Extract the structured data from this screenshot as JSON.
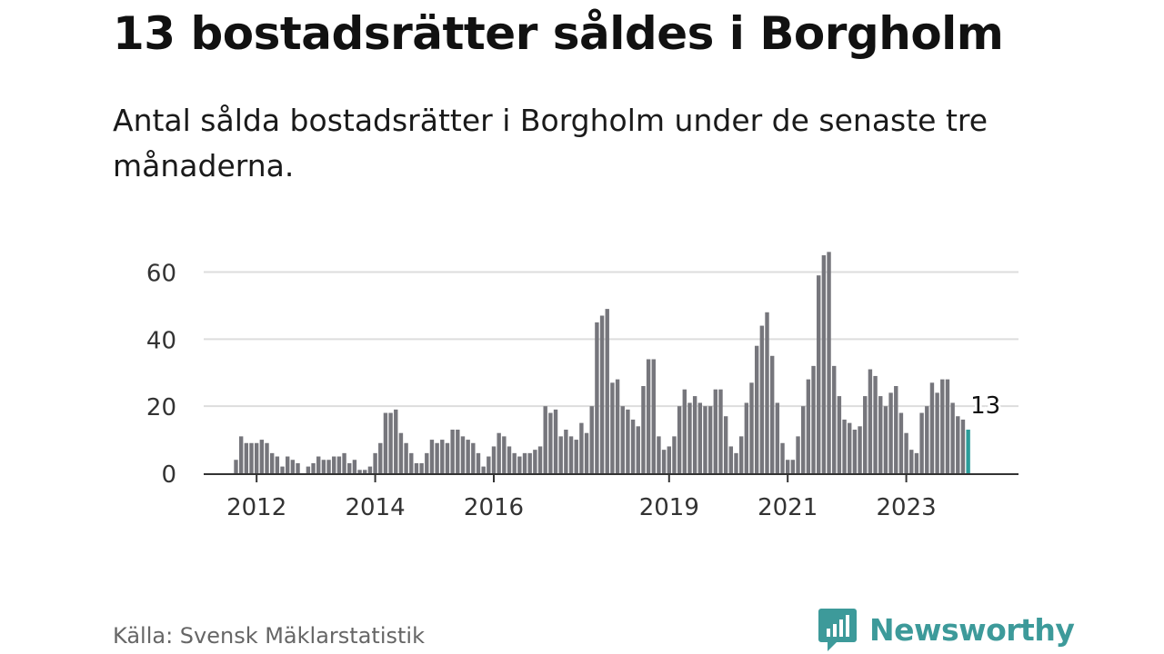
{
  "header": {
    "title": "13 bostadsrätter såldes i Borgholm",
    "subtitle": "Antal sålda bostadsrätter i Borgholm under de senaste tre månaderna."
  },
  "footer": {
    "source": "Källa: Svensk Mäklarstatistik",
    "brand": "Newsworthy"
  },
  "colors": {
    "bar": "#76767c",
    "highlight": "#2a9d9a",
    "grid": "#dddddd",
    "axis": "#333333",
    "brand": "#3d9a9a"
  },
  "chart_data": {
    "type": "bar",
    "title": "13 bostadsrätter såldes i Borgholm",
    "xlabel": "",
    "ylabel": "",
    "ylim": [
      0,
      70
    ],
    "yticks": [
      0,
      20,
      40,
      60
    ],
    "grid": true,
    "xtick_labels": [
      {
        "label": "2012",
        "index": 4
      },
      {
        "label": "2014",
        "index": 27
      },
      {
        "label": "2016",
        "index": 50
      },
      {
        "label": "2019",
        "index": 84
      },
      {
        "label": "2021",
        "index": 107
      },
      {
        "label": "2023",
        "index": 130
      }
    ],
    "highlight_index": 142,
    "highlight_label": "13",
    "values": [
      4,
      11,
      9,
      9,
      9,
      10,
      9,
      6,
      5,
      2,
      5,
      4,
      3,
      0,
      2,
      3,
      5,
      4,
      4,
      5,
      5,
      6,
      3,
      4,
      1,
      1,
      2,
      6,
      9,
      18,
      18,
      19,
      12,
      9,
      6,
      3,
      3,
      6,
      10,
      9,
      10,
      9,
      13,
      13,
      11,
      10,
      9,
      6,
      2,
      5,
      8,
      12,
      11,
      8,
      6,
      5,
      6,
      6,
      7,
      8,
      20,
      18,
      19,
      11,
      13,
      11,
      10,
      15,
      12,
      20,
      45,
      47,
      49,
      27,
      28,
      20,
      19,
      16,
      14,
      26,
      34,
      34,
      11,
      7,
      8,
      11,
      20,
      25,
      21,
      23,
      21,
      20,
      20,
      25,
      25,
      17,
      8,
      6,
      11,
      21,
      27,
      38,
      44,
      48,
      35,
      21,
      9,
      4,
      4,
      11,
      20,
      28,
      32,
      59,
      65,
      66,
      32,
      23,
      16,
      15,
      13,
      14,
      23,
      31,
      29,
      23,
      20,
      24,
      26,
      18,
      12,
      7,
      6,
      18,
      20,
      27,
      24,
      28,
      28,
      21,
      17,
      16,
      13
    ]
  }
}
